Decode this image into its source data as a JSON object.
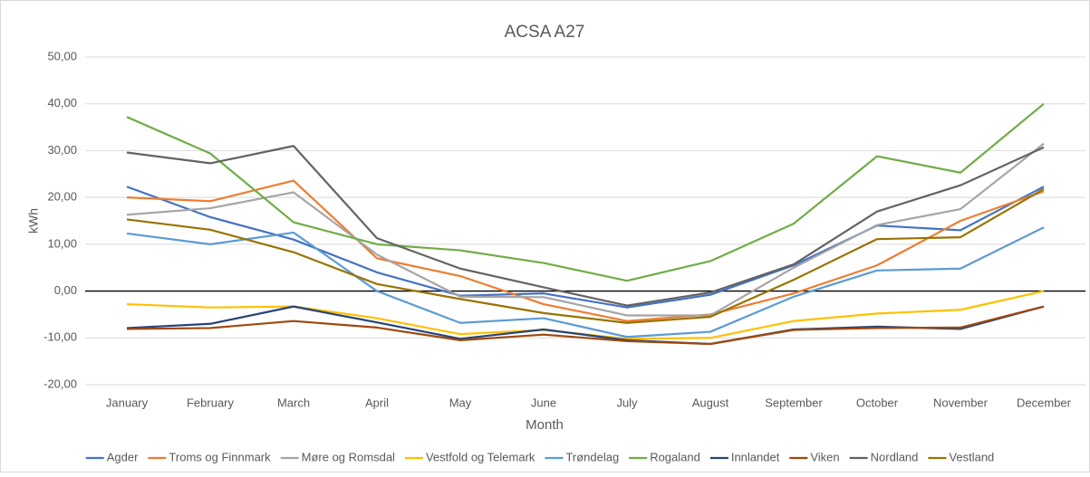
{
  "chart_data": {
    "type": "line",
    "title": "ACSA A27",
    "xlabel": "Month",
    "ylabel": "kWh",
    "categories": [
      "January",
      "February",
      "March",
      "April",
      "May",
      "June",
      "July",
      "August",
      "September",
      "October",
      "November",
      "December"
    ],
    "series": [
      {
        "name": "Agder",
        "color": "#4472c4",
        "values": [
          22.3,
          15.8,
          11,
          4,
          -1,
          -0.5,
          -3.5,
          -0.8,
          5.5,
          14,
          13,
          22.3
        ]
      },
      {
        "name": "Troms og Finnmark",
        "color": "#ed7d31",
        "values": [
          20,
          19.2,
          23.6,
          7,
          3.2,
          -2.8,
          -6.4,
          -5,
          -0.5,
          5.5,
          15,
          21.3
        ]
      },
      {
        "name": "Møre og Romsdal",
        "color": "#a5a5a5",
        "values": [
          16.3,
          17.7,
          21.1,
          7.8,
          -1.2,
          -1.3,
          -5.2,
          -5.2,
          5,
          14.1,
          17.5,
          31.5
        ]
      },
      {
        "name": "Vestfold og Telemark",
        "color": "#ffc000",
        "values": [
          -2.8,
          -3.5,
          -3.3,
          -5.8,
          -9.2,
          -8.3,
          -10.2,
          -10,
          -6.4,
          -4.8,
          -4,
          0
        ]
      },
      {
        "name": "Trøndelag",
        "color": "#5b9bd5",
        "values": [
          12.3,
          10,
          12.5,
          0,
          -6.8,
          -5.8,
          -9.8,
          -8.7,
          -1.2,
          4.4,
          4.8,
          13.6
        ]
      },
      {
        "name": "Rogaland",
        "color": "#70ad47",
        "values": [
          37.2,
          29.4,
          14.7,
          10,
          8.7,
          6,
          2.2,
          6.4,
          14.4,
          28.8,
          25.3,
          40
        ]
      },
      {
        "name": "Innlandet",
        "color": "#264478",
        "values": [
          -7.9,
          -7,
          -3.3,
          -6.7,
          -10.2,
          -8.2,
          -10.5,
          -11.3,
          -8.2,
          -7.6,
          -8.1,
          -3.3
        ]
      },
      {
        "name": "Viken",
        "color": "#9e480e",
        "values": [
          -8.1,
          -7.9,
          -6.4,
          -7.8,
          -10.5,
          -9.3,
          -10.7,
          -11.3,
          -8.3,
          -7.9,
          -7.8,
          -3.3
        ]
      },
      {
        "name": "Nordland",
        "color": "#636363",
        "values": [
          29.6,
          27.3,
          31,
          11.3,
          4.8,
          0.8,
          -3.1,
          -0.3,
          5.7,
          17,
          22.6,
          30.7
        ]
      },
      {
        "name": "Vestland",
        "color": "#997300",
        "values": [
          15.3,
          13.1,
          8.3,
          1.5,
          -1.7,
          -4.7,
          -6.8,
          -5.5,
          2.4,
          11.1,
          11.5,
          21.8
        ]
      }
    ],
    "ylim": [
      -20,
      50
    ],
    "yticks": [
      {
        "value": -20,
        "label": "-20,00"
      },
      {
        "value": -10,
        "label": "-10,00"
      },
      {
        "value": 0,
        "label": "0,00"
      },
      {
        "value": 10,
        "label": "10,00"
      },
      {
        "value": 20,
        "label": "20,00"
      },
      {
        "value": 30,
        "label": "30,00"
      },
      {
        "value": 40,
        "label": "40,00"
      },
      {
        "value": 50,
        "label": "50,00"
      }
    ],
    "grid": true,
    "legend": "bottom"
  }
}
